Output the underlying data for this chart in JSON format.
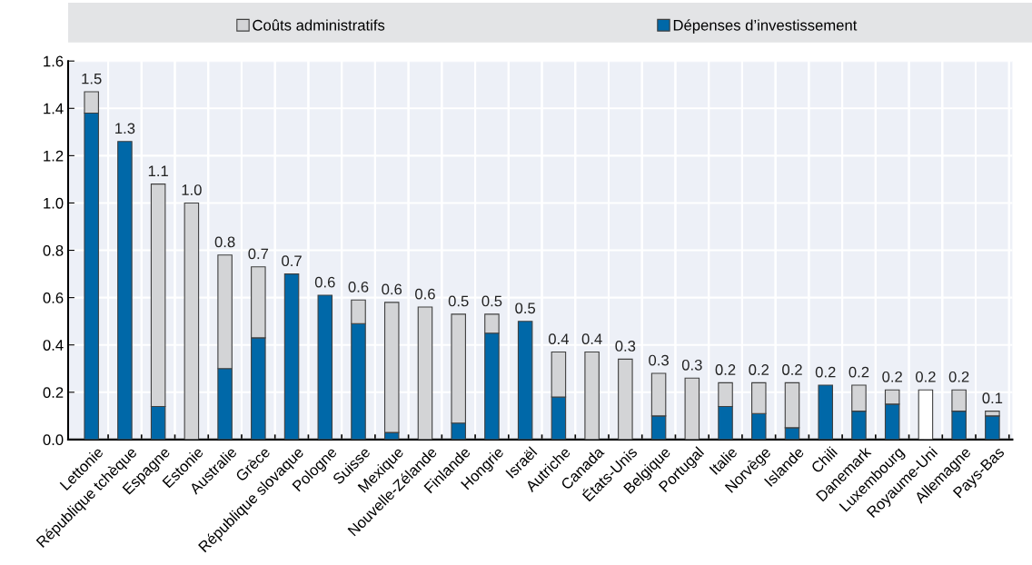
{
  "chart_data": {
    "type": "bar",
    "stacked": true,
    "categories": [
      "Lettonie",
      "République tchèque",
      "Espagne",
      "Estonie",
      "Australie",
      "Grèce",
      "République slovaque",
      "Pologne",
      "Suisse",
      "Mexique",
      "Nouvelle-Zélande",
      "Finlande",
      "Hongrie",
      "Israël",
      "Autriche",
      "Canada",
      "États-Unis",
      "Belgique",
      "Portugal",
      "Italie",
      "Norvège",
      "Islande",
      "Chili",
      "Danemark",
      "Luxembourg",
      "Royaume-Uni",
      "Allemagne",
      "Pays-Bas"
    ],
    "series": [
      {
        "name": "Dépenses d’investissement",
        "color": "#0068a8",
        "values": [
          1.38,
          1.26,
          0.14,
          null,
          0.3,
          0.43,
          0.7,
          0.61,
          0.49,
          0.03,
          null,
          0.07,
          0.45,
          0.5,
          0.18,
          null,
          null,
          0.1,
          null,
          0.14,
          0.11,
          0.05,
          0.23,
          0.12,
          0.15,
          null,
          0.12,
          0.1
        ]
      },
      {
        "name": "Coûts administratifs",
        "color": "#d3d4d6",
        "colors": [
          "#d3d4d6",
          "#d3d4d6",
          "#d3d4d6",
          "#d3d4d6",
          "#d3d4d6",
          "#d3d4d6",
          "#d3d4d6",
          "#d3d4d6",
          "#d3d4d6",
          "#d3d4d6",
          "#d3d4d6",
          "#d3d4d6",
          "#d3d4d6",
          "#d3d4d6",
          "#d3d4d6",
          "#d3d4d6",
          "#d3d4d6",
          "#d3d4d6",
          "#d3d4d6",
          "#d3d4d6",
          "#d3d4d6",
          "#d3d4d6",
          "#d3d4d6",
          "#d3d4d6",
          "#d3d4d6",
          "#ffffff",
          "#d3d4d6",
          "#d3d4d6"
        ],
        "values": [
          0.09,
          null,
          0.94,
          1.0,
          0.48,
          0.3,
          null,
          null,
          0.1,
          0.55,
          0.56,
          0.46,
          0.08,
          null,
          0.19,
          0.37,
          0.34,
          0.18,
          0.26,
          0.1,
          0.13,
          0.19,
          null,
          0.11,
          0.06,
          0.21,
          0.09,
          0.02
        ]
      }
    ],
    "totals": [
      "1.5",
      "1.3",
      "1.1",
      "1.0",
      "0.8",
      "0.7",
      "0.7",
      "0.6",
      "0.6",
      "0.6",
      "0.6",
      "0.5",
      "0.5",
      "0.5",
      "0.4",
      "0.4",
      "0.3",
      "0.3",
      "0.3",
      "0.2",
      "0.2",
      "0.2",
      "0.2",
      "0.2",
      "0.2",
      "0.2",
      "0.2",
      "0.1"
    ],
    "ylim": [
      0,
      1.6
    ],
    "yticks": [
      {
        "value": 0,
        "label": "0.0"
      },
      {
        "value": 0.2,
        "label": "0.2"
      },
      {
        "value": 0.4,
        "label": "0.4"
      },
      {
        "value": 0.6,
        "label": "0.6"
      },
      {
        "value": 0.8,
        "label": "0.8"
      },
      {
        "value": 1.0,
        "label": "1.0"
      },
      {
        "value": 1.2,
        "label": "1.2"
      },
      {
        "value": 1.4,
        "label": "1.4"
      },
      {
        "value": 1.6,
        "label": "1.6"
      }
    ],
    "grid": true,
    "legend": "top"
  }
}
